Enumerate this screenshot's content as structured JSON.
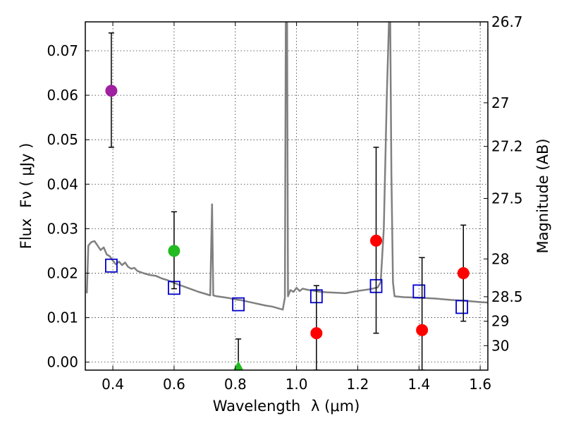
{
  "chart_data": {
    "type": "scatter",
    "title": "",
    "xlabel": "Wavelength",
    "xlabel_symbol": "λ (μm)",
    "ylabel": "Flux",
    "ylabel_symbol": "Fν ( μJy )",
    "ylabel_right": "Magnitude (AB)",
    "xlim": [
      0.31,
      1.625
    ],
    "ylim": [
      -0.0018,
      0.0765
    ],
    "grid": true,
    "x_ticks": [
      0.4,
      0.6,
      0.8,
      1.0,
      1.2,
      1.4,
      1.6
    ],
    "x_tick_labels": [
      "0.4",
      "0.6",
      "0.8",
      "1.0",
      "1.2",
      "1.4",
      "1.6"
    ],
    "y_ticks": [
      0.0,
      0.01,
      0.02,
      0.03,
      0.04,
      0.05,
      0.06,
      0.07
    ],
    "y_tick_labels": [
      "0.00",
      "0.01",
      "0.02",
      "0.03",
      "0.04",
      "0.05",
      "0.06",
      "0.07"
    ],
    "mag_ticks": [
      {
        "label": "26.7",
        "flux": 0.0765
      },
      {
        "label": "27",
        "flux": 0.0583
      },
      {
        "label": "27.2",
        "flux": 0.0485
      },
      {
        "label": "27.5",
        "flux": 0.0368
      },
      {
        "label": "28",
        "flux": 0.0232
      },
      {
        "label": "28.5",
        "flux": 0.0147
      },
      {
        "label": "29",
        "flux": 0.0092
      },
      {
        "label": "30",
        "flux": 0.0037
      }
    ],
    "series": [
      {
        "marker": "line",
        "color": "#808080",
        "points": [
          [
            0.315,
            0.0155
          ],
          [
            0.32,
            0.0262
          ],
          [
            0.33,
            0.027
          ],
          [
            0.34,
            0.0272
          ],
          [
            0.35,
            0.0262
          ],
          [
            0.36,
            0.0252
          ],
          [
            0.37,
            0.0258
          ],
          [
            0.38,
            0.0242
          ],
          [
            0.39,
            0.0238
          ],
          [
            0.4,
            0.0228
          ],
          [
            0.41,
            0.022
          ],
          [
            0.42,
            0.0226
          ],
          [
            0.43,
            0.0218
          ],
          [
            0.44,
            0.0224
          ],
          [
            0.45,
            0.0214
          ],
          [
            0.46,
            0.021
          ],
          [
            0.47,
            0.0212
          ],
          [
            0.48,
            0.0205
          ],
          [
            0.5,
            0.02
          ],
          [
            0.52,
            0.0196
          ],
          [
            0.54,
            0.0194
          ],
          [
            0.56,
            0.0188
          ],
          [
            0.58,
            0.0184
          ],
          [
            0.6,
            0.0178
          ],
          [
            0.62,
            0.0173
          ],
          [
            0.64,
            0.0168
          ],
          [
            0.66,
            0.0163
          ],
          [
            0.68,
            0.0158
          ],
          [
            0.7,
            0.0154
          ],
          [
            0.718,
            0.015
          ],
          [
            0.724,
            0.0355
          ],
          [
            0.728,
            0.015
          ],
          [
            0.74,
            0.0148
          ],
          [
            0.76,
            0.0146
          ],
          [
            0.78,
            0.0144
          ],
          [
            0.8,
            0.0141
          ],
          [
            0.82,
            0.0139
          ],
          [
            0.84,
            0.0136
          ],
          [
            0.86,
            0.0133
          ],
          [
            0.88,
            0.013
          ],
          [
            0.9,
            0.0127
          ],
          [
            0.92,
            0.0125
          ],
          [
            0.94,
            0.0121
          ],
          [
            0.955,
            0.0118
          ],
          [
            0.962,
            0.0145
          ],
          [
            0.965,
            0.0765
          ],
          [
            0.969,
            0.0765
          ],
          [
            0.972,
            0.0148
          ],
          [
            0.98,
            0.0162
          ],
          [
            0.99,
            0.0158
          ],
          [
            1.0,
            0.0167
          ],
          [
            1.01,
            0.016
          ],
          [
            1.02,
            0.0165
          ],
          [
            1.04,
            0.0162
          ],
          [
            1.06,
            0.016
          ],
          [
            1.08,
            0.0158
          ],
          [
            1.1,
            0.0157
          ],
          [
            1.13,
            0.0156
          ],
          [
            1.16,
            0.0155
          ],
          [
            1.2,
            0.016
          ],
          [
            1.24,
            0.0164
          ],
          [
            1.265,
            0.0168
          ],
          [
            1.275,
            0.018
          ],
          [
            1.285,
            0.03
          ],
          [
            1.295,
            0.06
          ],
          [
            1.302,
            0.0765
          ],
          [
            1.306,
            0.0765
          ],
          [
            1.31,
            0.042
          ],
          [
            1.315,
            0.018
          ],
          [
            1.32,
            0.0148
          ],
          [
            1.35,
            0.0146
          ],
          [
            1.4,
            0.0145
          ],
          [
            1.45,
            0.0143
          ],
          [
            1.5,
            0.014
          ],
          [
            1.55,
            0.0138
          ],
          [
            1.6,
            0.0135
          ],
          [
            1.625,
            0.0134
          ]
        ]
      },
      {
        "marker": "square",
        "color": "#0000cc",
        "points": [
          [
            0.395,
            0.0217
          ],
          [
            0.6,
            0.0167
          ],
          [
            0.81,
            0.013
          ],
          [
            1.065,
            0.0148
          ],
          [
            1.26,
            0.0171
          ],
          [
            1.4,
            0.0159
          ],
          [
            1.54,
            0.0124
          ]
        ]
      },
      {
        "marker": "circle",
        "points": [
          {
            "x": 0.395,
            "y": 0.061,
            "color": "#a020a0",
            "err_lo": 0.0483,
            "err_hi": 0.074
          },
          {
            "x": 0.6,
            "y": 0.025,
            "color": "#22bb22",
            "err_lo": 0.0165,
            "err_hi": 0.0338
          },
          {
            "x": 1.065,
            "y": 0.0065,
            "color": "#ff0000",
            "err_lo": -0.0018,
            "err_hi": 0.0172
          },
          {
            "x": 1.26,
            "y": 0.0273,
            "color": "#ff0000",
            "err_lo": 0.0065,
            "err_hi": 0.0483
          },
          {
            "x": 1.41,
            "y": 0.0072,
            "color": "#ff0000",
            "err_lo": -0.0018,
            "err_hi": 0.0235
          },
          {
            "x": 1.545,
            "y": 0.02,
            "color": "#ff0000",
            "err_lo": 0.0092,
            "err_hi": 0.0308
          }
        ]
      },
      {
        "marker": "triangle",
        "points": [
          {
            "x": 0.81,
            "y": -0.001,
            "color": "#22bb22",
            "err_lo": -0.0018,
            "err_hi": 0.0052
          }
        ]
      }
    ]
  }
}
